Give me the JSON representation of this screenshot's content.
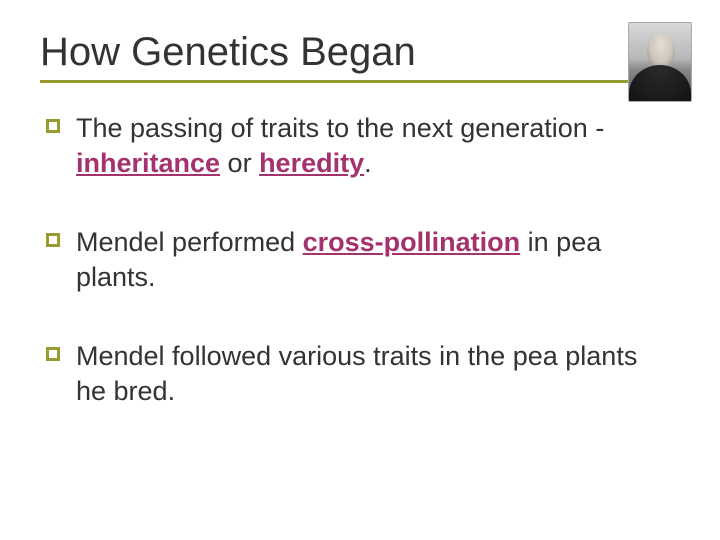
{
  "slide": {
    "title": "How Genetics Began",
    "title_color": "#333333",
    "title_fontsize": 40,
    "underline_color": "#9a9a33",
    "background_color": "#ffffff",
    "bullet_border_color": "#9a9a33",
    "body_fontsize": 27,
    "body_color": "#333333",
    "keyword_color": "#a3326e",
    "portrait_alt": "Gregor Mendel portrait",
    "items": [
      {
        "pre": "The passing of traits to the next generation - ",
        "key1": "inheritance",
        "mid": " or ",
        "key2": "heredity",
        "post": "."
      },
      {
        "pre": "Mendel performed ",
        "key1": "cross-pollination",
        "mid": " in pea plants.",
        "key2": "",
        "post": ""
      },
      {
        "pre": "Mendel followed various traits in the pea plants he bred.",
        "key1": "",
        "mid": "",
        "key2": "",
        "post": ""
      }
    ]
  }
}
